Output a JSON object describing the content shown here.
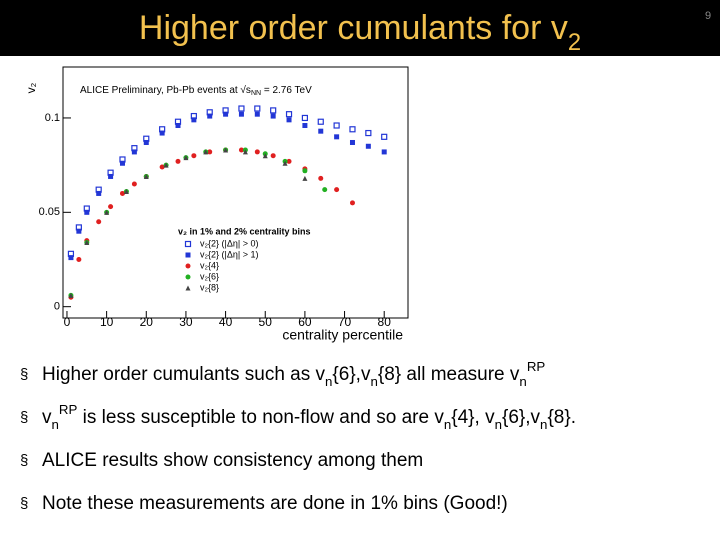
{
  "slide": {
    "title": [
      {
        "text": "Higher order cumulants for v"
      },
      {
        "text": "2",
        "pos": "sub"
      }
    ],
    "page_number": "9",
    "bullet_marker": "§",
    "bullets": [
      [
        {
          "text": "Higher order cumulants such as v"
        },
        {
          "text": "n",
          "pos": "sub"
        },
        {
          "text": "{6},v"
        },
        {
          "text": "n",
          "pos": "sub"
        },
        {
          "text": "{8} all measure v"
        },
        {
          "text": "n",
          "pos": "sub"
        },
        {
          "text": "RP",
          "pos": "sup"
        }
      ],
      [
        {
          "text": "v"
        },
        {
          "text": "n",
          "pos": "sub"
        },
        {
          "text": "RP",
          "pos": "sup"
        },
        {
          "text": " is less susceptible to non-flow and so are v"
        },
        {
          "text": "n",
          "pos": "sub"
        },
        {
          "text": "{4}, v"
        },
        {
          "text": "n",
          "pos": "sub"
        },
        {
          "text": "{6},v"
        },
        {
          "text": "n",
          "pos": "sub"
        },
        {
          "text": "{8}."
        }
      ],
      [
        {
          "text": "ALICE results show consistency among them"
        }
      ],
      [
        {
          "text": "Note these measurements are done in 1% bins (Good!)"
        }
      ]
    ]
  },
  "chart_data": {
    "type": "scatter",
    "title": [
      {
        "text": "ALICE Preliminary, Pb-Pb events at √s"
      },
      {
        "text": "NN",
        "pos": "sub"
      },
      {
        "text": " = 2.76 TeV"
      }
    ],
    "legend_title": "v₂ in 1% and 2% centrality bins",
    "xlabel": "centrality percentile",
    "ylabel": "v₂",
    "xlim": [
      -1,
      86
    ],
    "ylim": [
      -0.006,
      0.127
    ],
    "xticks": [
      0,
      10,
      20,
      30,
      40,
      50,
      60,
      70,
      80
    ],
    "yticks": [
      0,
      0.05,
      0.1
    ],
    "series": [
      {
        "name": "v₂{2} (|Δη| > 0)",
        "color": "#2236d6",
        "marker": "open-square",
        "x": [
          1,
          3,
          5,
          8,
          11,
          14,
          17,
          20,
          24,
          28,
          32,
          36,
          40,
          44,
          48,
          52,
          56,
          60,
          64,
          68,
          72,
          76,
          80
        ],
        "values": [
          0.028,
          0.042,
          0.052,
          0.062,
          0.071,
          0.078,
          0.084,
          0.089,
          0.094,
          0.098,
          0.101,
          0.103,
          0.104,
          0.105,
          0.105,
          0.104,
          0.102,
          0.1,
          0.098,
          0.096,
          0.094,
          0.092,
          0.09
        ]
      },
      {
        "name": "v₂{2} (|Δη| > 1)",
        "color": "#2236d6",
        "marker": "square",
        "x": [
          1,
          3,
          5,
          8,
          11,
          14,
          17,
          20,
          24,
          28,
          32,
          36,
          40,
          44,
          48,
          52,
          56,
          60,
          64,
          68,
          72,
          76,
          80
        ],
        "values": [
          0.026,
          0.04,
          0.05,
          0.06,
          0.069,
          0.076,
          0.082,
          0.087,
          0.092,
          0.096,
          0.099,
          0.101,
          0.102,
          0.102,
          0.102,
          0.101,
          0.099,
          0.096,
          0.093,
          0.09,
          0.087,
          0.085,
          0.082
        ]
      },
      {
        "name": "v₂{4}",
        "color": "#e02020",
        "marker": "circle",
        "x": [
          1,
          3,
          5,
          8,
          11,
          14,
          17,
          20,
          24,
          28,
          32,
          36,
          40,
          44,
          48,
          52,
          56,
          60,
          64,
          68,
          72
        ],
        "values": [
          0.005,
          0.025,
          0.035,
          0.045,
          0.053,
          0.06,
          0.065,
          0.069,
          0.074,
          0.077,
          0.08,
          0.082,
          0.083,
          0.083,
          0.082,
          0.08,
          0.077,
          0.073,
          0.068,
          0.062,
          0.055
        ]
      },
      {
        "name": "v₂{6}",
        "color": "#22b022",
        "marker": "circle",
        "x": [
          1,
          5,
          10,
          15,
          20,
          25,
          30,
          35,
          40,
          45,
          50,
          55,
          60,
          65
        ],
        "values": [
          0.006,
          0.034,
          0.05,
          0.061,
          0.069,
          0.075,
          0.079,
          0.082,
          0.083,
          0.083,
          0.081,
          0.077,
          0.072,
          0.062
        ]
      },
      {
        "name": "v₂{8}",
        "color": "#444444",
        "marker": "triangle",
        "x": [
          1,
          5,
          10,
          15,
          20,
          25,
          30,
          35,
          40,
          45,
          50,
          55,
          60
        ],
        "values": [
          0.006,
          0.034,
          0.05,
          0.061,
          0.069,
          0.075,
          0.079,
          0.082,
          0.083,
          0.082,
          0.08,
          0.076,
          0.068
        ]
      }
    ]
  }
}
